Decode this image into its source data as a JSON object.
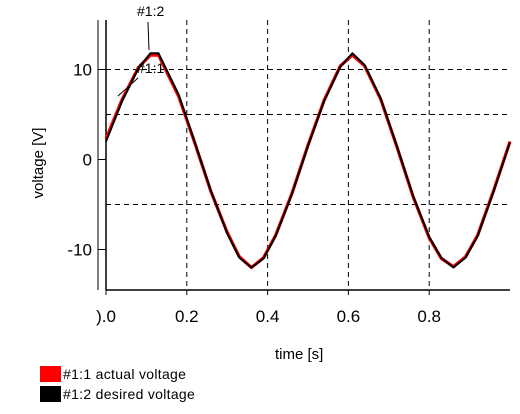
{
  "chart_data": {
    "type": "line",
    "title": "",
    "xlabel": "time [s]",
    "ylabel": "voltage  [V]",
    "xlim": [
      0,
      1
    ],
    "ylim": [
      -14.5,
      15.5
    ],
    "x_ticks": [
      0.0,
      0.2,
      0.4,
      0.6,
      0.8
    ],
    "x_tick_labels": [
      ").0",
      "0.2",
      "0.4",
      "0.6",
      "0.8"
    ],
    "y_ticks": [
      -10,
      0,
      10
    ],
    "y_tick_labels": [
      "-10",
      "0",
      "10"
    ],
    "grid": true,
    "grid_style": "dashed",
    "legend_position": "bottom-left",
    "series": [
      {
        "name": "#1:1 actual voltage",
        "color": "#ff0000",
        "x": [
          0.0,
          0.04,
          0.08,
          0.11,
          0.13,
          0.18,
          0.22,
          0.26,
          0.3,
          0.33,
          0.36,
          0.39,
          0.42,
          0.46,
          0.5,
          0.54,
          0.58,
          0.61,
          0.64,
          0.68,
          0.72,
          0.76,
          0.8,
          0.83,
          0.86,
          0.89,
          0.92,
          0.96,
          1.0
        ],
        "y": [
          2.3,
          6.7,
          10.2,
          11.6,
          11.6,
          7.0,
          1.8,
          -3.6,
          -8.1,
          -10.8,
          -12.0,
          -10.9,
          -8.4,
          -3.8,
          1.6,
          6.6,
          10.4,
          11.6,
          10.4,
          6.7,
          1.4,
          -4.1,
          -8.7,
          -11.0,
          -11.9,
          -10.8,
          -8.4,
          -3.4,
          2.0
        ]
      },
      {
        "name": "#1:2 desired voltage",
        "color": "#000000",
        "x": [
          0.0,
          0.04,
          0.08,
          0.11,
          0.13,
          0.18,
          0.22,
          0.26,
          0.3,
          0.33,
          0.36,
          0.39,
          0.42,
          0.46,
          0.5,
          0.54,
          0.58,
          0.61,
          0.64,
          0.68,
          0.72,
          0.76,
          0.8,
          0.83,
          0.86,
          0.89,
          0.92,
          0.96,
          1.0
        ],
        "y": [
          2.0,
          6.5,
          10.1,
          11.8,
          11.8,
          7.2,
          1.9,
          -3.5,
          -8.2,
          -10.9,
          -12.0,
          -11.0,
          -8.5,
          -3.9,
          1.5,
          6.5,
          10.3,
          11.8,
          10.5,
          6.8,
          1.5,
          -4.0,
          -8.6,
          -10.9,
          -12.0,
          -10.9,
          -8.5,
          -3.5,
          1.9
        ]
      }
    ],
    "annotations": [
      "#1:2",
      "#1:1"
    ]
  },
  "legend": {
    "items": [
      {
        "label": "#1:1 actual voltage",
        "color": "#ff0000"
      },
      {
        "label": "#1:2 desired voltage",
        "color": "#000000"
      }
    ]
  }
}
